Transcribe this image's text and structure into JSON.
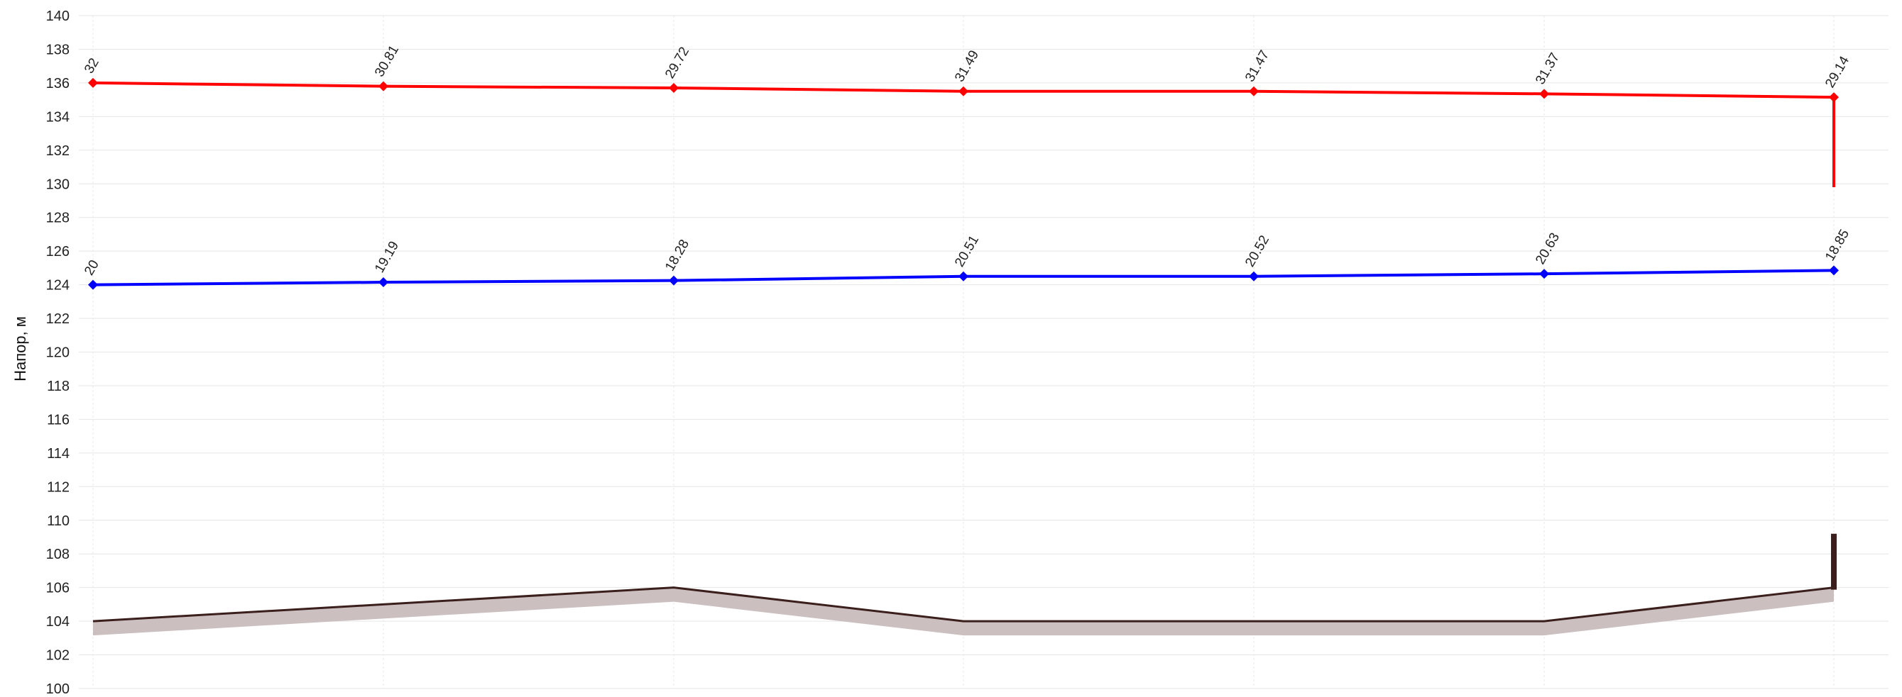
{
  "chart_data": {
    "type": "line",
    "ylabel": "Напор, м",
    "ylim": [
      100,
      140
    ],
    "ytick_step": 2,
    "x_positions": [
      0,
      1,
      2,
      3,
      4,
      5,
      6
    ],
    "grid": true,
    "series": [
      {
        "key": "pressure-upper",
        "color": "#ff0000",
        "marker": "diamond",
        "values": [
          136.0,
          135.8,
          135.7,
          135.5,
          135.5,
          135.35,
          135.15
        ],
        "labels": [
          "32",
          "30.81",
          "29.72",
          "31.49",
          "31.47",
          "31.37",
          "29.14"
        ],
        "end_drop_to": 129.8
      },
      {
        "key": "pressure-lower",
        "color": "#0000ff",
        "marker": "diamond",
        "values": [
          124.0,
          124.15,
          124.25,
          124.5,
          124.5,
          124.65,
          124.85
        ],
        "labels": [
          "20",
          "19.19",
          "18.28",
          "20.51",
          "20.52",
          "20.63",
          "18.85"
        ]
      },
      {
        "key": "ground",
        "color": "#3b1f1c",
        "shadow_color": "#cbbfc0",
        "values": [
          104.0,
          105.0,
          106.0,
          104.0,
          104.0,
          104.0,
          106.0
        ],
        "end_rise_to": 109.2
      }
    ]
  }
}
